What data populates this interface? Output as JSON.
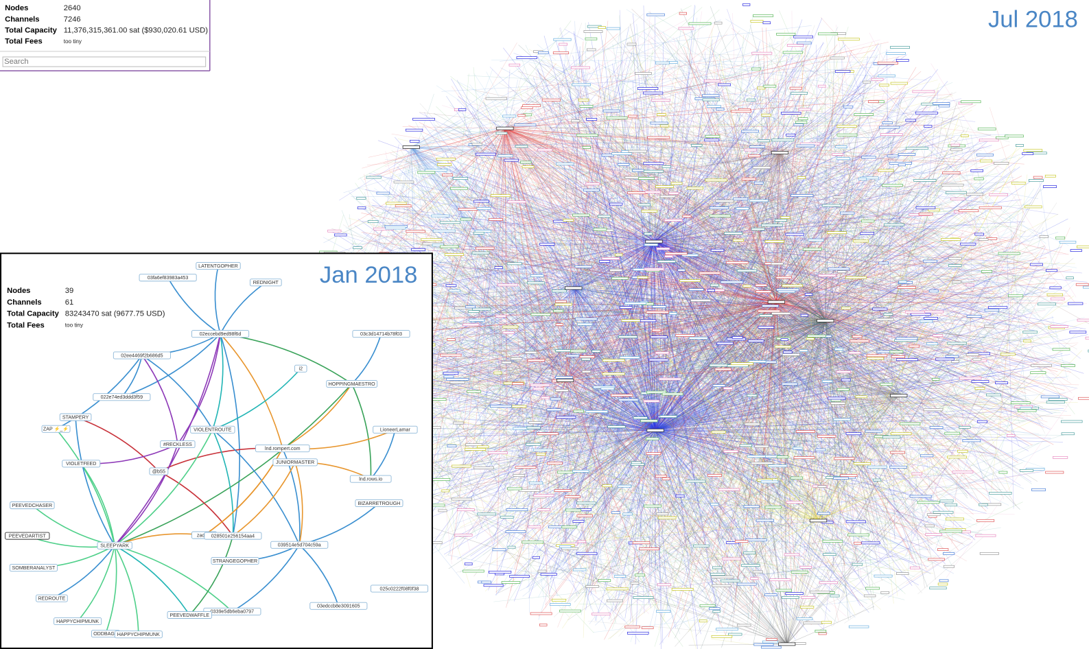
{
  "jul_2018": {
    "title": "Jul 2018",
    "stats": [
      [
        "Nodes",
        "2640"
      ],
      [
        "Channels",
        "7246"
      ],
      [
        "Total Capacity",
        "11,376,315,361.00 sat ($930,020.61 USD)"
      ],
      [
        "Total Fees",
        "too tiny"
      ]
    ],
    "search_placeholder": "Search"
  },
  "jan_2018": {
    "title": "Jan 2018",
    "stats": [
      [
        "Nodes",
        "39"
      ],
      [
        "Channels",
        "61"
      ],
      [
        "Total Capacity",
        "83243470 sat (9677.75 USD)"
      ],
      [
        "Total Fees",
        "too tiny"
      ]
    ],
    "nodes": [
      "LATENTGOPHER",
      "03fa6ef83983a453",
      "REDNIGHT",
      "02eccebd9ed98f6d",
      "03c3d14714b78f03",
      "02ee4469f2b686d5",
      "i2",
      "HOPPINGMAESTRO",
      "022e74ed3ddd3f59",
      "STAMPERY",
      "ZAP ⚡_⚡",
      "VIOLENTROUTE",
      "LioneerLamar",
      "#RECKLESS",
      "lnd.rompert.com",
      "JUNIORMASTER",
      "VIOLETFEED",
      "@b55",
      "lnd.rows.io",
      "BIZARRETROUGH",
      "PEEVEDCHASER",
      "PEEVEDARTIST",
      "zadroz",
      "028501e256154aa4",
      "SLEEPYARK",
      "039514e5d704c59a",
      "SOMBERANALYST",
      "STRANGEGOPHER",
      "025c0222f08f0f38",
      "REDROUTE",
      "03edccb8e3091605",
      "0339e5db6eba0797",
      "PEEVEDWAFFLE",
      "HAPPYCHIPMUNK",
      "ODDBAGE",
      "HAPPYCHIPMUNK"
    ]
  }
}
